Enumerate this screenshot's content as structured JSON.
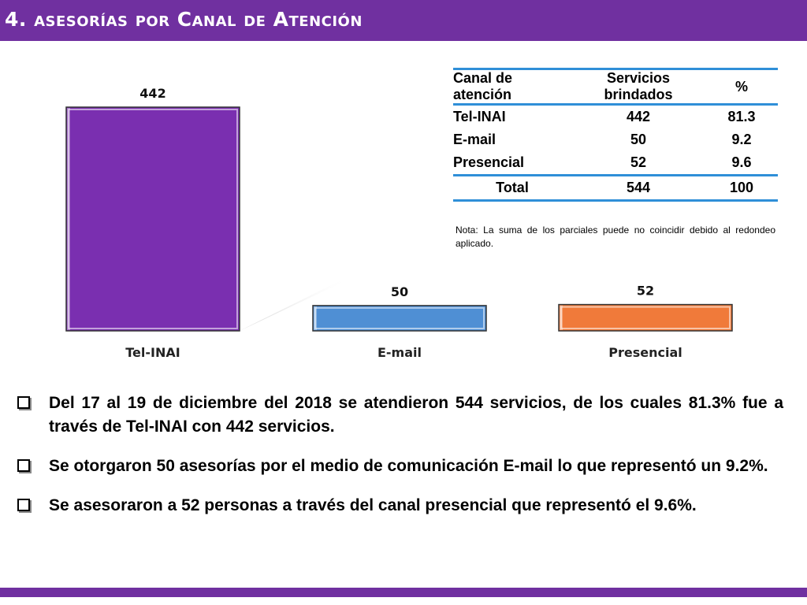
{
  "header": {
    "title": "4. asesorías por Canal de Atención"
  },
  "colors": {
    "header": "#7030a0",
    "tel_inai": "#7a2fb0",
    "email": "#4f8fd4",
    "presencial": "#f07a3a",
    "table_rule": "#2f8fd8"
  },
  "chart_data": {
    "type": "bar",
    "categories": [
      "Tel-INAI",
      "E-mail",
      "Presencial"
    ],
    "values": [
      442,
      50,
      52
    ],
    "data_labels": [
      "442",
      "50",
      "52"
    ],
    "ylim": [
      0,
      442
    ],
    "grid": false,
    "legend": "none"
  },
  "table": {
    "headers": [
      "Canal de atención",
      "Servicios brindados",
      "%"
    ],
    "rows": [
      [
        "Tel-INAI",
        "442",
        "81.3"
      ],
      [
        "E-mail",
        "50",
        "9.2"
      ],
      [
        "Presencial",
        "52",
        "9.6"
      ]
    ],
    "total": [
      "Total",
      "544",
      "100"
    ]
  },
  "note": "Nota: La suma de los parciales puede no coincidir debido al redondeo aplicado.",
  "bullets": [
    "Del 17 al 19 de diciembre del 2018 se atendieron 544 servicios, de los cuales 81.3% fue a través de Tel-INAI con 442 servicios.",
    "Se otorgaron 50 asesorías por el medio de comunicación E-mail lo que representó un 9.2%.",
    "Se asesoraron a 52  personas a través del canal presencial que representó el 9.6%."
  ]
}
